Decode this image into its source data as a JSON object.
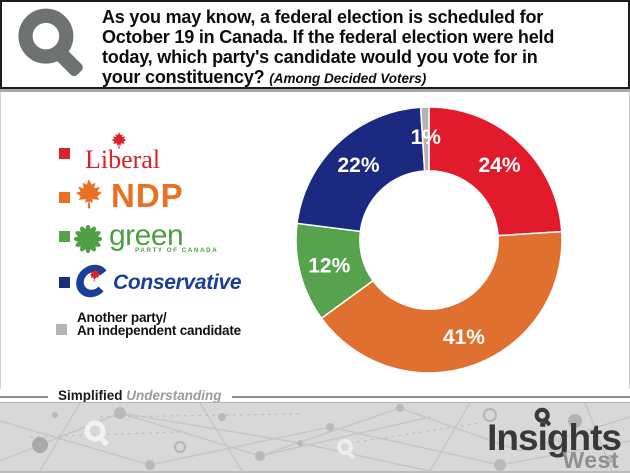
{
  "header": {
    "lines": [
      "As you may know, a federal election is scheduled for",
      "October 19 in Canada. If the federal election were held",
      "today, which party's candidate would you vote for in",
      "your constituency?"
    ],
    "note": "(Among Decided Voters)"
  },
  "legend": {
    "liberal": {
      "label": "Liberal",
      "color": "#d8232a"
    },
    "ndp": {
      "label": "NDP",
      "color": "#ea7024"
    },
    "green": {
      "label": "green",
      "sub": "PARTY OF CANADA",
      "color": "#4fa045"
    },
    "conservative": {
      "label": "Conservative",
      "color": "#1b3e99"
    },
    "other": {
      "line1": "Another party/",
      "line2": "An independent candidate",
      "color": "#b5b5b5"
    }
  },
  "chart_data": {
    "type": "pie",
    "donut": true,
    "title": "Federal vote intention among decided voters",
    "categories": [
      "Liberal",
      "NDP",
      "Green",
      "Conservative",
      "Another party / An independent candidate"
    ],
    "values": [
      24,
      41,
      12,
      22,
      1
    ],
    "labels": [
      "24%",
      "41%",
      "12%",
      "22%",
      "1%"
    ],
    "colors": [
      "#e11b2c",
      "#e0702f",
      "#57a24c",
      "#1b2a80",
      "#b3b3b3"
    ],
    "start_angle_deg": 0,
    "direction": "clockwise",
    "inner_radius_ratio": 0.52,
    "label_color": "#ffffff",
    "legend_position": "left"
  },
  "divider": {
    "bold": "Simplified",
    "italic": "Understanding"
  },
  "footer": {
    "brand_top": "Insights",
    "brand_bottom": "West"
  }
}
